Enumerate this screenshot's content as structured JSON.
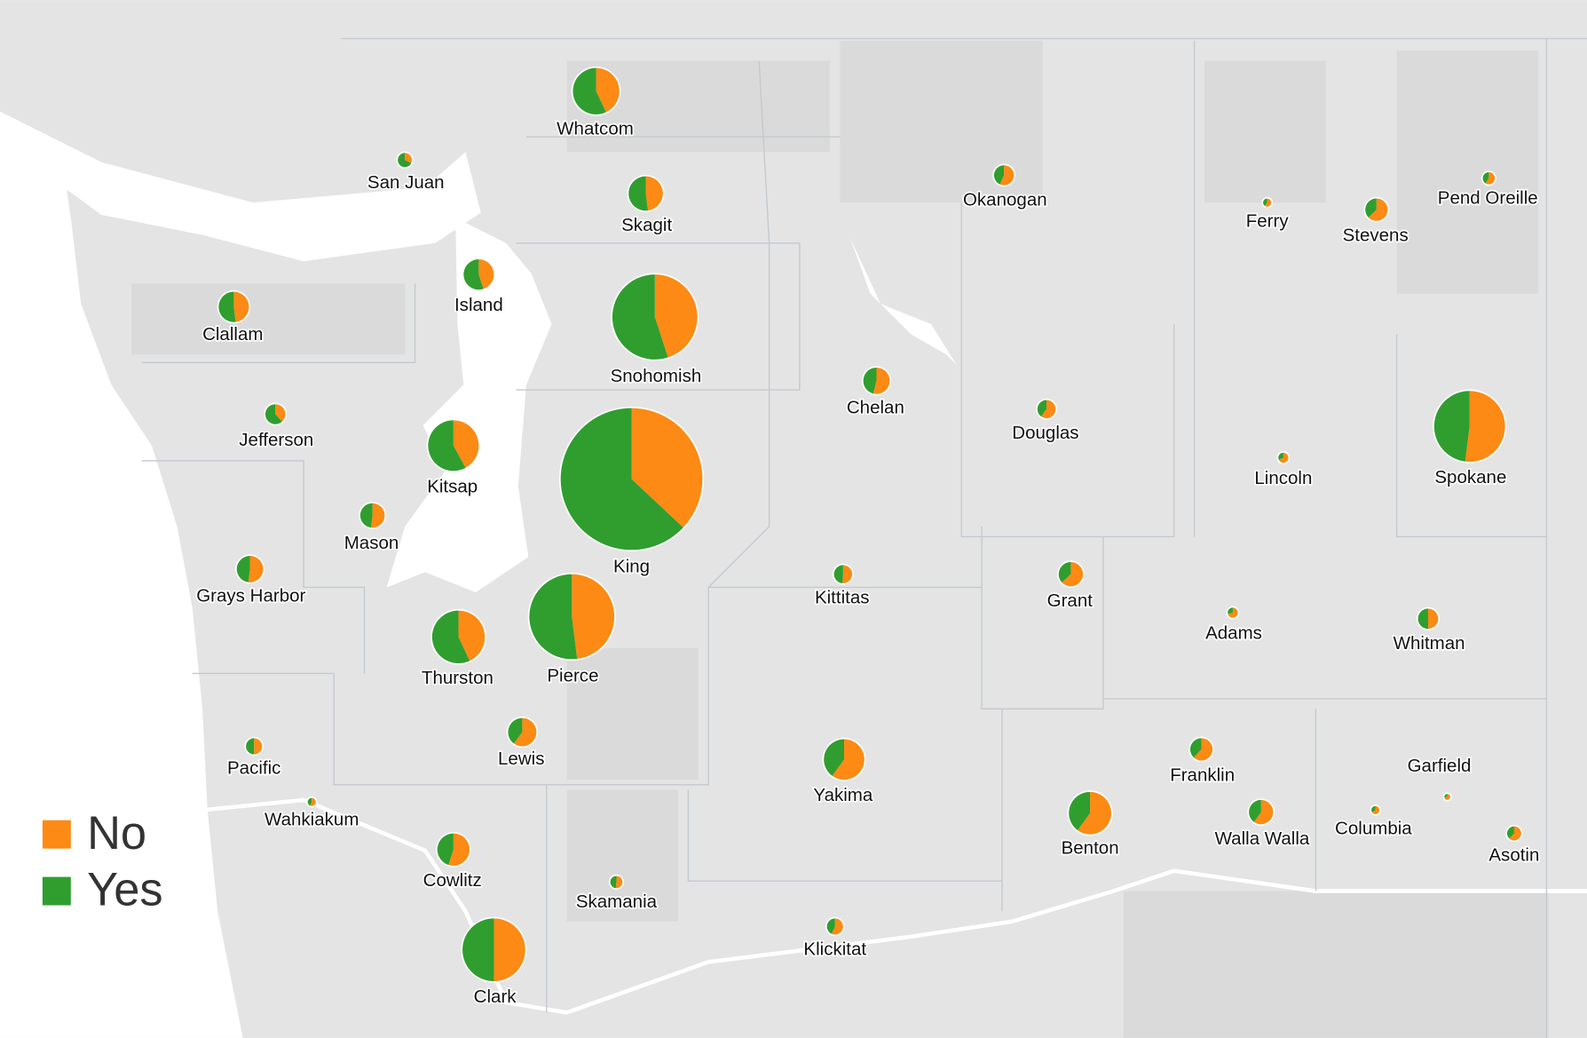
{
  "legend": [
    {
      "label": "No",
      "color": "#fd8a14"
    },
    {
      "label": "Yes",
      "color": "#2f9e2f"
    }
  ],
  "counties": [
    {
      "name": "Whatcom",
      "yes": 61.6,
      "no": 46.4
    },
    {
      "name": "San Juan",
      "yes": 6.8,
      "no": 3.2
    },
    {
      "name": "Skagit",
      "yes": 30.7,
      "no": 28.3
    },
    {
      "name": "Island",
      "yes": 25.3,
      "no": 20.7
    },
    {
      "name": "Clallam",
      "yes": 23.9,
      "no": 22.1
    },
    {
      "name": "Snohomish",
      "yes": 198.6,
      "no": 162.4
    },
    {
      "name": "Jefferson",
      "yes": 12.4,
      "no": 7.6
    },
    {
      "name": "Kitsap",
      "yes": 74.2,
      "no": 53.8
    },
    {
      "name": "King",
      "yes": 632.5,
      "no": 371.5
    },
    {
      "name": "Mason",
      "yes": 14.4,
      "no": 15.6
    },
    {
      "name": "Grays Harbor",
      "yes": 16.8,
      "no": 18.2
    },
    {
      "name": "Thurston",
      "yes": 79.2,
      "no": 59.8
    },
    {
      "name": "Pierce",
      "yes": 187.7,
      "no": 173.3
    },
    {
      "name": "Lewis",
      "yes": 16,
      "no": 24
    },
    {
      "name": "Pacific",
      "yes": 6.5,
      "no": 6.5
    },
    {
      "name": "Wahkiakum",
      "yes": 1.4,
      "no": 1.9
    },
    {
      "name": "Cowlitz",
      "yes": 23.4,
      "no": 28.6
    },
    {
      "name": "Skamania",
      "yes": 3.6,
      "no": 3.8
    },
    {
      "name": "Clark",
      "yes": 98.5,
      "no": 98.5
    },
    {
      "name": "Klickitat",
      "yes": 5.6,
      "no": 7.4
    },
    {
      "name": "Yakima",
      "yes": 32.8,
      "no": 49.2
    },
    {
      "name": "Chelan",
      "yes": 16.1,
      "no": 18.9
    },
    {
      "name": "Okanogan",
      "yes": 8.6,
      "no": 11.4
    },
    {
      "name": "Douglas",
      "yes": 6.6,
      "no": 10
    },
    {
      "name": "Kittitas",
      "yes": 8.1,
      "no": 8.5
    },
    {
      "name": "Grant",
      "yes": 10.9,
      "no": 18.6
    },
    {
      "name": "Benton",
      "yes": 36,
      "no": 54
    },
    {
      "name": "Franklin",
      "yes": 9.5,
      "no": 15.5
    },
    {
      "name": "Walla Walla",
      "yes": 11.8,
      "no": 17.7
    },
    {
      "name": "Columbia",
      "yes": 1.1,
      "no": 2.2
    },
    {
      "name": "Garfield",
      "yes": 0.5,
      "no": 1.3
    },
    {
      "name": "Asotin",
      "yes": 3.8,
      "no": 6.2
    },
    {
      "name": "Whitman",
      "yes": 10.3,
      "no": 10.2
    },
    {
      "name": "Adams",
      "yes": 1.5,
      "no": 3.6
    },
    {
      "name": "Lincoln",
      "yes": 1.6,
      "no": 3.5
    },
    {
      "name": "Spokane",
      "yes": 120.5,
      "no": 130.5
    },
    {
      "name": "Ferry",
      "yes": 1.3,
      "no": 2
    },
    {
      "name": "Stevens",
      "yes": 9.3,
      "no": 15.7
    },
    {
      "name": "Pend Oreille",
      "yes": 3,
      "no": 4.4
    }
  ]
}
